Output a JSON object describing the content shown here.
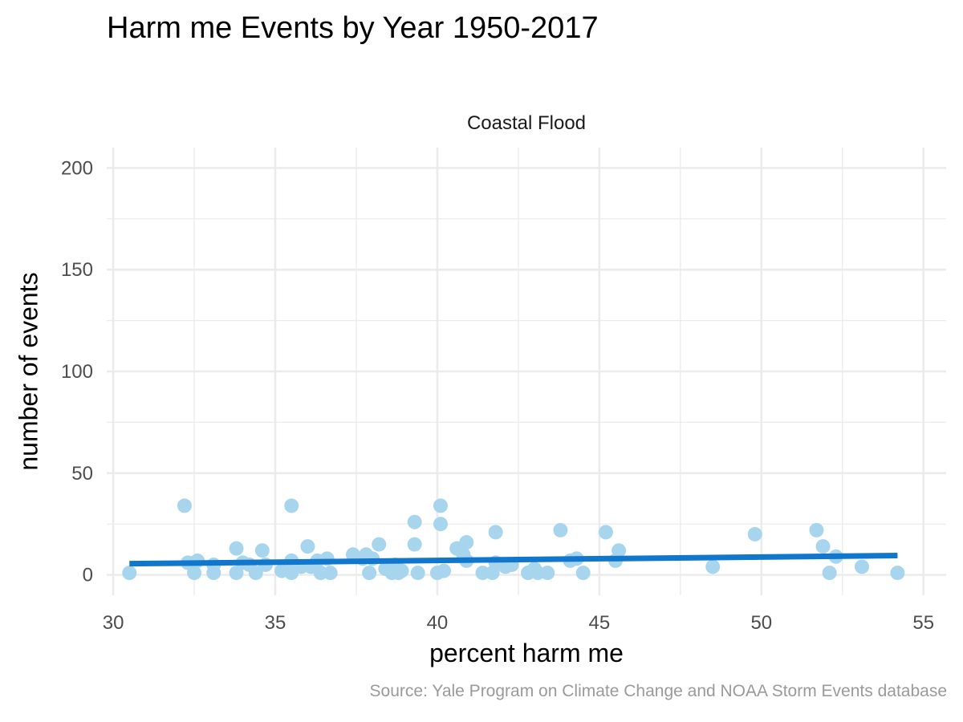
{
  "chart_data": {
    "type": "scatter",
    "title": "Harm me Events by Year 1950-2017",
    "facet_label": "Coastal Flood",
    "xlabel": "percent harm me",
    "ylabel": "number of events",
    "caption": "Source: Yale Program on Climate Change and NOAA Storm Events database",
    "xlim": [
      29.8,
      55.7
    ],
    "ylim": [
      -10,
      210
    ],
    "x_ticks": [
      30,
      35,
      40,
      45,
      50,
      55
    ],
    "y_ticks": [
      0,
      50,
      100,
      150,
      200
    ],
    "grid": true,
    "colors": {
      "points": "#a8d5ee",
      "trend_line": "#1177cc",
      "grid": "#ebebeb"
    },
    "points": [
      {
        "x": 30.5,
        "y": 1
      },
      {
        "x": 32.2,
        "y": 34
      },
      {
        "x": 32.3,
        "y": 6
      },
      {
        "x": 32.5,
        "y": 6
      },
      {
        "x": 32.5,
        "y": 1
      },
      {
        "x": 32.6,
        "y": 7
      },
      {
        "x": 33.1,
        "y": 5
      },
      {
        "x": 33.1,
        "y": 1
      },
      {
        "x": 33.8,
        "y": 13
      },
      {
        "x": 33.8,
        "y": 1
      },
      {
        "x": 34.0,
        "y": 6
      },
      {
        "x": 34.2,
        "y": 5
      },
      {
        "x": 34.4,
        "y": 1
      },
      {
        "x": 34.6,
        "y": 12
      },
      {
        "x": 34.7,
        "y": 5
      },
      {
        "x": 35.2,
        "y": 2
      },
      {
        "x": 35.5,
        "y": 34
      },
      {
        "x": 35.5,
        "y": 7
      },
      {
        "x": 35.5,
        "y": 1
      },
      {
        "x": 35.8,
        "y": 4
      },
      {
        "x": 36.0,
        "y": 14
      },
      {
        "x": 36.1,
        "y": 4
      },
      {
        "x": 36.3,
        "y": 7
      },
      {
        "x": 36.4,
        "y": 1
      },
      {
        "x": 36.6,
        "y": 8
      },
      {
        "x": 36.7,
        "y": 1
      },
      {
        "x": 37.4,
        "y": 10
      },
      {
        "x": 37.7,
        "y": 8
      },
      {
        "x": 37.8,
        "y": 10
      },
      {
        "x": 38.0,
        "y": 8
      },
      {
        "x": 37.9,
        "y": 1
      },
      {
        "x": 38.2,
        "y": 15
      },
      {
        "x": 38.4,
        "y": 3
      },
      {
        "x": 38.6,
        "y": 1
      },
      {
        "x": 38.7,
        "y": 5
      },
      {
        "x": 38.8,
        "y": 1
      },
      {
        "x": 38.9,
        "y": 2
      },
      {
        "x": 39.3,
        "y": 26
      },
      {
        "x": 39.3,
        "y": 15
      },
      {
        "x": 39.4,
        "y": 1
      },
      {
        "x": 40.1,
        "y": 34
      },
      {
        "x": 40.1,
        "y": 25
      },
      {
        "x": 40.0,
        "y": 1
      },
      {
        "x": 40.2,
        "y": 2
      },
      {
        "x": 40.6,
        "y": 13
      },
      {
        "x": 40.8,
        "y": 10
      },
      {
        "x": 40.9,
        "y": 16
      },
      {
        "x": 40.9,
        "y": 7
      },
      {
        "x": 41.4,
        "y": 1
      },
      {
        "x": 41.7,
        "y": 1
      },
      {
        "x": 41.8,
        "y": 21
      },
      {
        "x": 41.8,
        "y": 6
      },
      {
        "x": 42.1,
        "y": 4
      },
      {
        "x": 42.3,
        "y": 5
      },
      {
        "x": 42.8,
        "y": 1
      },
      {
        "x": 43.0,
        "y": 3
      },
      {
        "x": 43.1,
        "y": 1
      },
      {
        "x": 43.4,
        "y": 1
      },
      {
        "x": 43.8,
        "y": 22
      },
      {
        "x": 44.1,
        "y": 7
      },
      {
        "x": 44.3,
        "y": 8
      },
      {
        "x": 44.5,
        "y": 1
      },
      {
        "x": 45.2,
        "y": 21
      },
      {
        "x": 45.5,
        "y": 7
      },
      {
        "x": 45.6,
        "y": 12
      },
      {
        "x": 48.5,
        "y": 4
      },
      {
        "x": 49.8,
        "y": 20
      },
      {
        "x": 51.7,
        "y": 22
      },
      {
        "x": 51.9,
        "y": 14
      },
      {
        "x": 52.1,
        "y": 1
      },
      {
        "x": 52.3,
        "y": 9
      },
      {
        "x": 53.1,
        "y": 4
      },
      {
        "x": 54.2,
        "y": 1
      }
    ],
    "trend_line": {
      "x": [
        30.5,
        54.2
      ],
      "y": [
        5.5,
        9.5
      ]
    }
  }
}
